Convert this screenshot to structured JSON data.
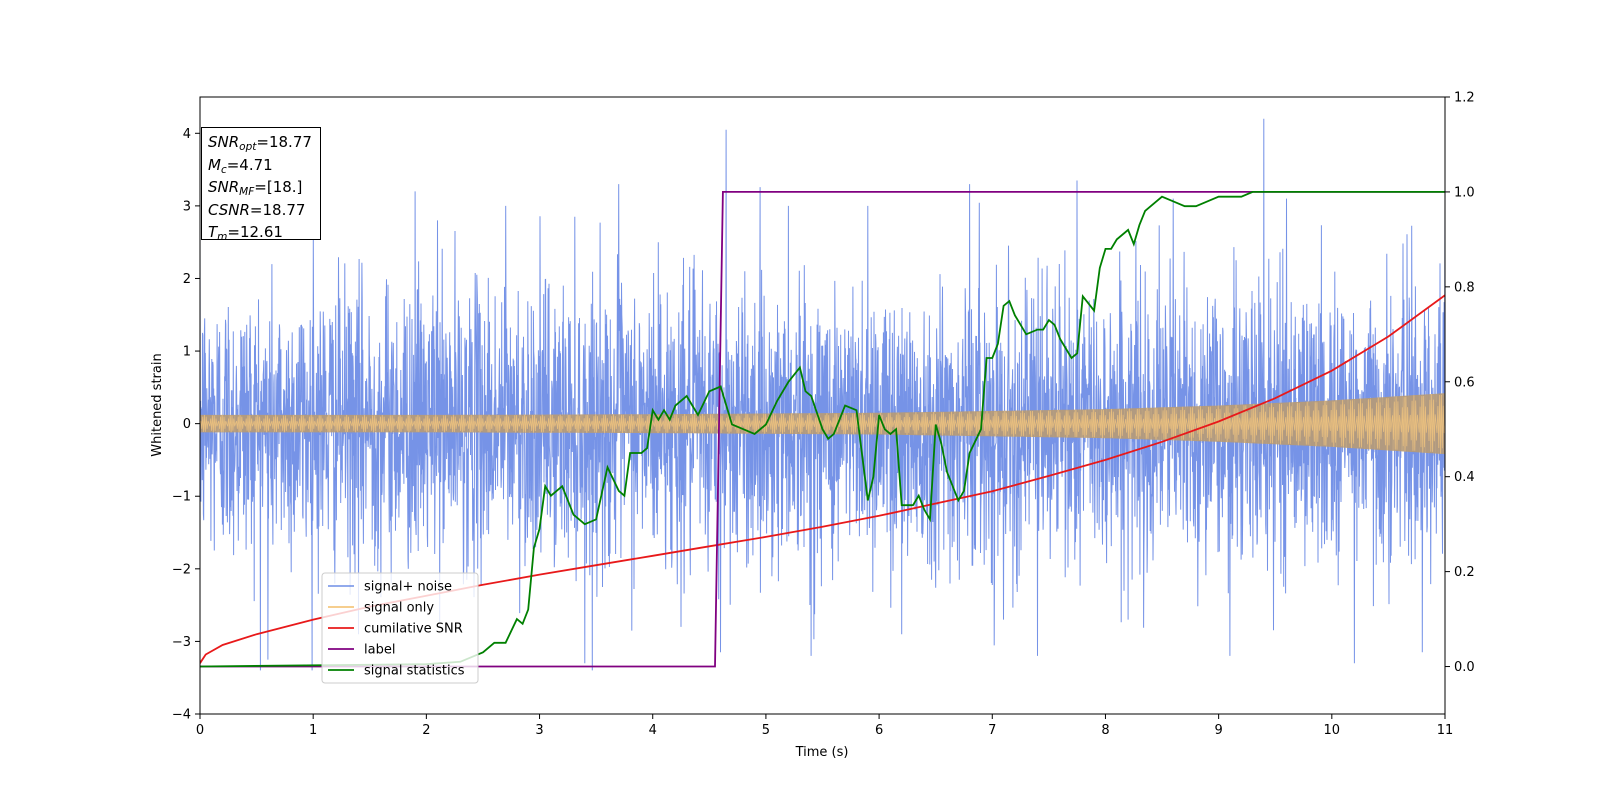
{
  "chart_data": {
    "type": "line",
    "xlabel": "Time (s)",
    "ylabel": "Whitened strain",
    "xlim": [
      0,
      11
    ],
    "ylim": [
      -4,
      4.5
    ],
    "y2lim": [
      -0.1,
      1.2
    ],
    "xticks": [
      "0",
      "1",
      "2",
      "3",
      "4",
      "5",
      "6",
      "7",
      "8",
      "9",
      "10",
      "11"
    ],
    "yticks": [
      "−4",
      "−3",
      "−2",
      "−1",
      "0",
      "1",
      "2",
      "3",
      "4"
    ],
    "y2ticks": [
      "0.0",
      "0.2",
      "0.4",
      "0.6",
      "0.8",
      "1.0",
      "1.2"
    ],
    "legend_position": "lower-left",
    "annotations": [
      {
        "name": "SNR",
        "sub": "opt",
        "value": "=18.77"
      },
      {
        "name": "M",
        "sub": "c",
        "value": "=4.71"
      },
      {
        "name": "SNR",
        "sub": "MF",
        "value": "=[18.]"
      },
      {
        "name": "CSNR",
        "sub": "",
        "value": "=18.77"
      },
      {
        "name": "T",
        "sub": "m",
        "value": "=12.61"
      }
    ],
    "series": [
      {
        "name": "signal+ noise",
        "color": "#6f8de6",
        "axis": "left",
        "envelope": {
          "x": [
            0,
            11
          ],
          "upper_typical": [
            1.4,
            1.5
          ],
          "lower_typical": [
            -1.4,
            -1.5
          ]
        },
        "spikes": [
          [
            0.6,
            -3.25
          ],
          [
            1.0,
            2.6
          ],
          [
            1.4,
            -2.9
          ],
          [
            1.9,
            3.2
          ],
          [
            2.1,
            2.8
          ],
          [
            2.7,
            3.0
          ],
          [
            3.4,
            -3.3
          ],
          [
            3.7,
            3.3
          ],
          [
            4.05,
            2.5
          ],
          [
            4.25,
            -2.8
          ],
          [
            4.65,
            4.05
          ],
          [
            4.6,
            -3.15
          ],
          [
            5.2,
            3.0
          ],
          [
            5.4,
            -3.2
          ],
          [
            5.9,
            3.0
          ],
          [
            6.2,
            -2.9
          ],
          [
            6.8,
            3.3
          ],
          [
            7.1,
            -2.7
          ],
          [
            7.4,
            -3.2
          ],
          [
            7.75,
            3.35
          ],
          [
            8.2,
            -2.7
          ],
          [
            8.6,
            3.1
          ],
          [
            9.1,
            -3.2
          ],
          [
            9.4,
            4.2
          ],
          [
            9.6,
            3.1
          ],
          [
            10.2,
            -3.3
          ],
          [
            10.8,
            -3.15
          ],
          [
            11.0,
            3.1
          ]
        ]
      },
      {
        "name": "signal only",
        "color": "#f5c77e",
        "axis": "left",
        "envelope": {
          "x": [
            0,
            2,
            4,
            6,
            8,
            9,
            10,
            11
          ],
          "amplitude": [
            0.12,
            0.12,
            0.13,
            0.15,
            0.2,
            0.25,
            0.32,
            0.42
          ]
        }
      },
      {
        "name": "cumilative SNR",
        "color": "#e8191a",
        "axis": "left",
        "x": [
          0,
          0.05,
          0.2,
          0.5,
          1,
          1.5,
          2,
          2.5,
          3,
          3.5,
          4,
          4.5,
          5,
          5.5,
          6,
          6.5,
          7,
          7.5,
          8,
          8.5,
          9,
          9.5,
          10,
          10.5,
          11
        ],
        "y": [
          -3.3,
          -3.18,
          -3.05,
          -2.9,
          -2.7,
          -2.52,
          -2.37,
          -2.22,
          -2.08,
          -1.95,
          -1.82,
          -1.69,
          -1.56,
          -1.42,
          -1.27,
          -1.1,
          -0.93,
          -0.72,
          -0.5,
          -0.25,
          0.03,
          0.35,
          0.73,
          1.2,
          1.77
        ]
      },
      {
        "name": "label",
        "color": "#800080",
        "axis": "right",
        "x": [
          0,
          4.55,
          4.62,
          11
        ],
        "y": [
          0,
          0,
          1,
          1
        ]
      },
      {
        "name": "signal statistics",
        "color": "#008000",
        "axis": "right",
        "x": [
          0,
          2.0,
          2.3,
          2.5,
          2.6,
          2.7,
          2.8,
          2.85,
          2.9,
          2.95,
          3.0,
          3.05,
          3.1,
          3.2,
          3.3,
          3.35,
          3.4,
          3.5,
          3.6,
          3.7,
          3.75,
          3.8,
          3.9,
          3.95,
          4.0,
          4.05,
          4.1,
          4.15,
          4.2,
          4.3,
          4.35,
          4.4,
          4.5,
          4.6,
          4.7,
          4.8,
          4.9,
          5.0,
          5.1,
          5.2,
          5.3,
          5.35,
          5.4,
          5.5,
          5.55,
          5.6,
          5.7,
          5.8,
          5.9,
          5.95,
          6.0,
          6.05,
          6.1,
          6.15,
          6.2,
          6.3,
          6.35,
          6.4,
          6.45,
          6.5,
          6.55,
          6.6,
          6.7,
          6.75,
          6.8,
          6.9,
          6.95,
          7.0,
          7.05,
          7.1,
          7.15,
          7.2,
          7.25,
          7.3,
          7.4,
          7.45,
          7.5,
          7.55,
          7.6,
          7.7,
          7.75,
          7.8,
          7.9,
          7.95,
          8.0,
          8.05,
          8.1,
          8.2,
          8.25,
          8.3,
          8.35,
          8.4,
          8.5,
          8.6,
          8.7,
          8.8,
          8.9,
          9.0,
          9.1,
          9.2,
          9.3,
          9.4,
          9.6,
          9.8,
          10.0,
          10.5,
          11.0
        ],
        "y": [
          0.0,
          0.005,
          0.01,
          0.03,
          0.05,
          0.05,
          0.1,
          0.09,
          0.12,
          0.25,
          0.29,
          0.38,
          0.36,
          0.38,
          0.32,
          0.31,
          0.3,
          0.31,
          0.42,
          0.37,
          0.36,
          0.45,
          0.45,
          0.46,
          0.54,
          0.52,
          0.54,
          0.52,
          0.55,
          0.57,
          0.55,
          0.53,
          0.58,
          0.59,
          0.51,
          0.5,
          0.49,
          0.51,
          0.56,
          0.6,
          0.63,
          0.58,
          0.57,
          0.5,
          0.48,
          0.49,
          0.55,
          0.54,
          0.35,
          0.4,
          0.53,
          0.5,
          0.49,
          0.5,
          0.34,
          0.34,
          0.36,
          0.33,
          0.31,
          0.51,
          0.47,
          0.41,
          0.35,
          0.37,
          0.45,
          0.5,
          0.65,
          0.65,
          0.68,
          0.76,
          0.77,
          0.74,
          0.72,
          0.7,
          0.71,
          0.71,
          0.73,
          0.72,
          0.69,
          0.65,
          0.66,
          0.78,
          0.75,
          0.84,
          0.88,
          0.88,
          0.9,
          0.92,
          0.89,
          0.93,
          0.96,
          0.97,
          0.99,
          0.98,
          0.97,
          0.97,
          0.98,
          0.99,
          0.99,
          0.99,
          1.0,
          1.0,
          1.0,
          1.0,
          1.0,
          1.0,
          1.0
        ]
      }
    ]
  }
}
